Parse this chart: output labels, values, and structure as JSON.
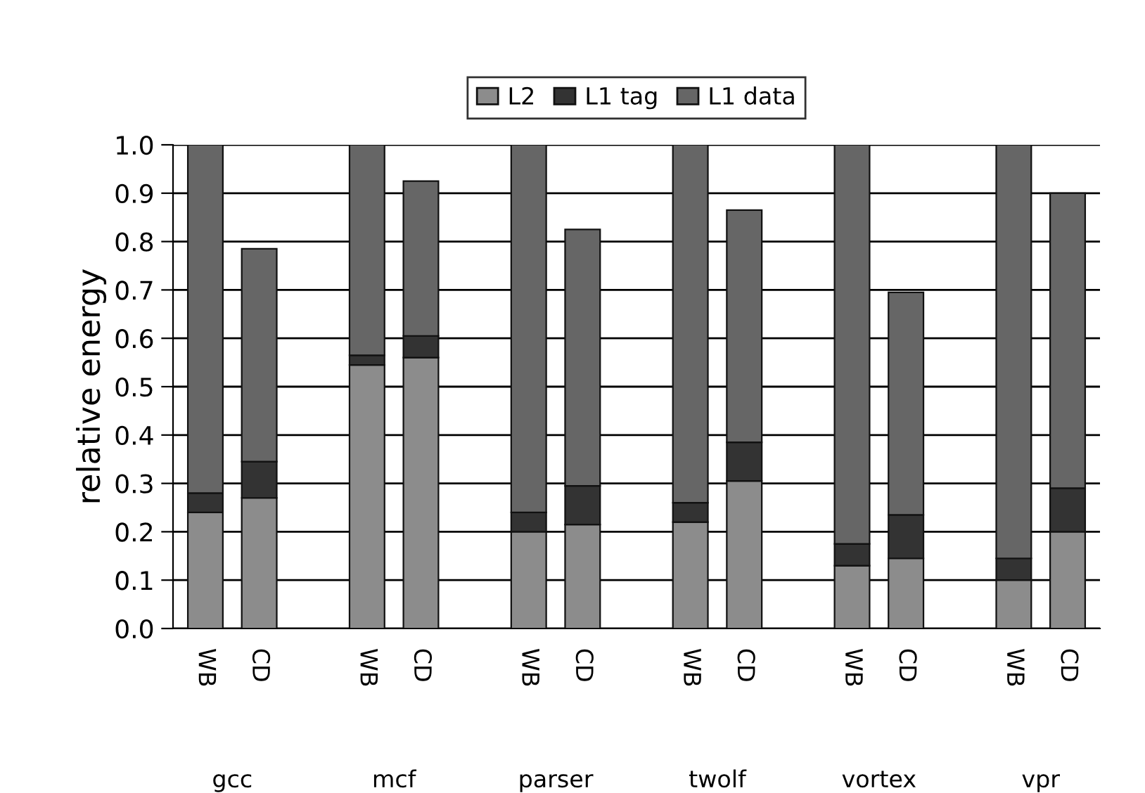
{
  "chart_data": {
    "type": "bar",
    "stacked": true,
    "ylabel": "relative energy",
    "categories": [
      "WB",
      "CD",
      null,
      "WB",
      "CD",
      null,
      "WB",
      "CD",
      null,
      "WB",
      "CD",
      null,
      "WB",
      "CD",
      null,
      "WB",
      "CD"
    ],
    "series": [
      {
        "name": "L2",
        "color": "#8c8c8c",
        "values": [
          0.24,
          0.27,
          null,
          0.545,
          0.56,
          null,
          0.2,
          0.215,
          null,
          0.22,
          0.305,
          null,
          0.13,
          0.145,
          null,
          0.1,
          0.2
        ]
      },
      {
        "name": "L1 tag",
        "color": "#333333",
        "values": [
          0.04,
          0.075,
          null,
          0.02,
          0.045,
          null,
          0.04,
          0.08,
          null,
          0.04,
          0.08,
          null,
          0.045,
          0.09,
          null,
          0.045,
          0.09
        ]
      },
      {
        "name": "L1 data",
        "color": "#666666",
        "values": [
          0.72,
          0.44,
          null,
          0.435,
          0.32,
          null,
          0.76,
          0.53,
          null,
          0.74,
          0.48,
          null,
          0.825,
          0.46,
          null,
          0.855,
          0.61
        ]
      }
    ],
    "annotations": [
      "gcc",
      "mcf",
      "parser",
      "twolf",
      "vortex",
      "vpr"
    ],
    "ylim": [
      0,
      1.0
    ],
    "yticks": [
      {
        "value": 0,
        "label": "0.0"
      },
      {
        "value": 0.1,
        "label": "0.1"
      },
      {
        "value": 0.2,
        "label": "0.2"
      },
      {
        "value": 0.3,
        "label": "0.3"
      },
      {
        "value": 0.4,
        "label": "0.4"
      },
      {
        "value": 0.5,
        "label": "0.5"
      },
      {
        "value": 0.6,
        "label": "0.6"
      },
      {
        "value": 0.7,
        "label": "0.7"
      },
      {
        "value": 0.8,
        "label": "0.8"
      },
      {
        "value": 0.9,
        "label": "0.9"
      },
      {
        "value": 1.0,
        "label": "1.0"
      }
    ],
    "grid": "y",
    "legend": "top"
  }
}
